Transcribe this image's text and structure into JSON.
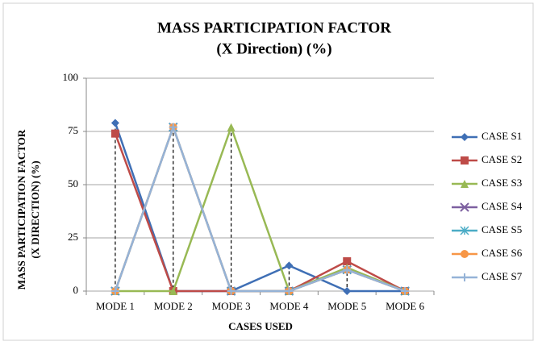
{
  "chart_data": {
    "type": "line",
    "title_lines": [
      "MASS PARTICIPATION  FACTOR",
      "(X Direction) (%)"
    ],
    "y_label_lines": [
      "MASS PARTICIPATION FACTOR",
      "(X DIRECTION) (%)"
    ],
    "x_label": "CASES USED",
    "categories": [
      "MODE 1",
      "MODE 2",
      "MODE 3",
      "MODE 4",
      "MODE 5",
      "MODE 6"
    ],
    "ylim": [
      0,
      100
    ],
    "yticks": [
      0,
      25,
      50,
      75,
      100
    ],
    "grid": true,
    "legend": "right",
    "series": [
      {
        "name": "CASE S1",
        "color": "#3f6fb5",
        "marker": "diamond",
        "values": [
          79,
          0,
          0,
          12,
          0,
          0
        ]
      },
      {
        "name": "CASE S2",
        "color": "#be4b48",
        "marker": "square",
        "values": [
          74,
          0,
          0,
          0,
          14,
          0
        ]
      },
      {
        "name": "CASE S3",
        "color": "#98b954",
        "marker": "triangle",
        "values": [
          0,
          0,
          77,
          0,
          11,
          0
        ]
      },
      {
        "name": "CASE S4",
        "color": "#7d60a0",
        "marker": "x",
        "values": [
          0,
          77,
          0,
          0,
          10,
          0
        ]
      },
      {
        "name": "CASE S5",
        "color": "#4bacc6",
        "marker": "star",
        "values": [
          0,
          77,
          0,
          0,
          10,
          0
        ]
      },
      {
        "name": "CASE S6",
        "color": "#f79646",
        "marker": "circle",
        "values": [
          0,
          77,
          0,
          0,
          10,
          0
        ]
      },
      {
        "name": "CASE S7",
        "color": "#95b3d7",
        "marker": "plus",
        "values": [
          0,
          77,
          0,
          0,
          10,
          0
        ]
      }
    ]
  }
}
